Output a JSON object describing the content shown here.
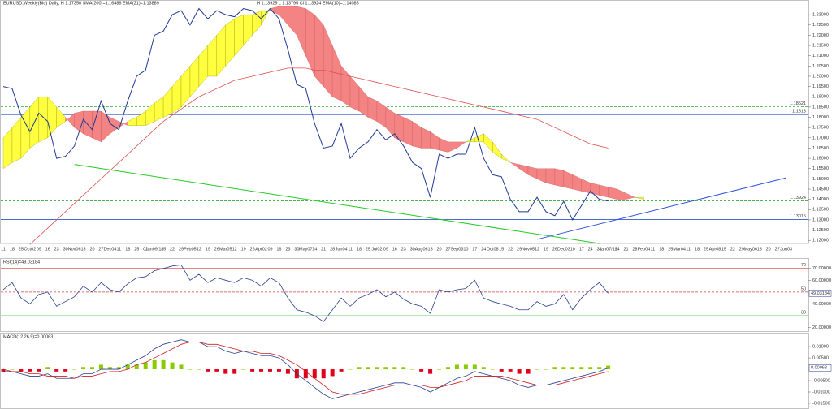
{
  "chart_data": [
    {
      "type": "line",
      "title": "EURUSD,Weekly(Bid) Daily, H 1.17350 SMA(200)=1.16486 EMA(21)=1.13889",
      "subtitle": "H 1.13929 L 1.13795 Cl 1.13924 EMA(10)=1.14088",
      "categories": [
        "11",
        "18",
        "25",
        "Oct02",
        "09",
        "16",
        "23",
        "30",
        "Nov06",
        "13",
        "20",
        "27",
        "Dec04",
        "11",
        "18",
        "25",
        "01",
        "Jan09/18",
        "15",
        "22",
        "29",
        "Feb05",
        "12",
        "19",
        "26",
        "Mar05",
        "12",
        "19",
        "26",
        "Apr02",
        "09",
        "16",
        "23",
        "30",
        "May07",
        "14",
        "21",
        "28",
        "Jun04",
        "11",
        "18",
        "25",
        "Jul02",
        "09",
        "16",
        "23",
        "30",
        "Aug06",
        "13",
        "20",
        "27",
        "Sep03",
        "10",
        "17",
        "24",
        "Oct08",
        "15",
        "22",
        "29",
        "Nov05",
        "12",
        "19",
        "26",
        "Dec03",
        "10",
        "17",
        "24",
        "31",
        "Jan07/19",
        "14",
        "21",
        "28",
        "Feb04",
        "11",
        "18",
        "25",
        "Mar04",
        "11",
        "18",
        "25",
        "Apr08",
        "15",
        "22",
        "29",
        "May06",
        "13",
        "20",
        "27",
        "Jun03"
      ],
      "series": [
        {
          "color": "#1f3a93",
          "values": [
            1.195,
            1.194,
            1.181,
            1.173,
            1.182,
            1.178,
            1.16,
            1.161,
            1.166,
            1.179,
            1.174,
            1.188,
            1.177,
            1.174,
            1.188,
            1.2,
            1.203,
            1.22,
            1.222,
            1.23,
            1.232,
            1.225,
            1.233,
            1.228,
            1.232,
            1.23,
            1.229,
            1.233,
            1.232,
            1.228,
            1.233,
            1.228,
            1.213,
            1.196,
            1.194,
            1.177,
            1.165,
            1.166,
            1.177,
            1.16,
            1.165,
            1.168,
            1.174,
            1.169,
            1.172,
            1.166,
            1.158,
            1.155,
            1.141,
            1.162,
            1.16,
            1.162,
            1.162,
            1.175,
            1.16,
            1.152,
            1.151,
            1.14,
            1.134,
            1.134,
            1.141,
            1.134,
            1.132,
            1.139,
            1.13,
            1.137,
            1.144,
            1.14,
            1.1392,
            null,
            null,
            null,
            null,
            null,
            null,
            null,
            null,
            null,
            null,
            null,
            null,
            null,
            null,
            null,
            null,
            null,
            null,
            null,
            null
          ]
        },
        {
          "color": "#e05050",
          "values": [
            null,
            null,
            null,
            1.118,
            1.122,
            1.126,
            1.13,
            1.134,
            1.138,
            1.142,
            1.146,
            1.15,
            1.154,
            1.158,
            1.162,
            1.166,
            1.17,
            1.174,
            1.178,
            1.181,
            1.184,
            1.187,
            1.19,
            1.192,
            1.194,
            1.196,
            1.198,
            1.199,
            1.2,
            1.201,
            1.202,
            1.203,
            1.204,
            1.204,
            1.204,
            1.203,
            1.203,
            1.202,
            1.201,
            1.2,
            1.199,
            1.198,
            1.197,
            1.196,
            1.195,
            1.194,
            1.193,
            1.192,
            1.191,
            1.19,
            1.189,
            1.188,
            1.187,
            1.186,
            1.185,
            1.184,
            1.183,
            1.182,
            1.181,
            1.18,
            1.179,
            1.177,
            1.175,
            1.173,
            1.171,
            1.169,
            1.167,
            1.166,
            1.165,
            null,
            null,
            null,
            null,
            null,
            null,
            null,
            null,
            null,
            null,
            null,
            null,
            null,
            null,
            null,
            null,
            null,
            null,
            null,
            null
          ]
        }
      ],
      "cloud": {
        "bull_color": "#ffff40",
        "bear_color": "#f48484",
        "span_a": [
          1.17,
          1.175,
          1.18,
          1.185,
          1.19,
          1.19,
          1.185,
          1.18,
          1.175,
          1.172,
          1.17,
          1.168,
          1.172,
          1.175,
          1.178,
          1.18,
          1.183,
          1.187,
          1.19,
          1.195,
          1.2,
          1.205,
          1.21,
          1.215,
          1.22,
          1.225,
          1.228,
          1.23,
          1.23,
          1.232,
          1.232,
          1.23,
          1.225,
          1.22,
          1.21,
          1.2,
          1.195,
          1.19,
          1.188,
          1.185,
          1.183,
          1.18,
          1.178,
          1.175,
          1.17,
          1.168,
          1.166,
          1.165,
          1.165,
          1.164,
          1.163,
          1.165,
          1.168,
          1.17,
          1.172,
          1.168,
          1.162,
          1.158,
          1.155,
          1.152,
          1.15,
          1.148,
          1.147,
          1.146,
          1.145,
          1.144,
          1.143,
          1.142,
          1.141,
          1.14,
          1.14,
          1.141,
          1.141,
          null,
          null,
          null,
          null,
          null,
          null,
          null,
          null,
          null,
          null,
          null,
          null,
          null,
          null,
          null,
          null
        ],
        "span_b": [
          1.155,
          1.158,
          1.16,
          1.165,
          1.168,
          1.17,
          1.175,
          1.178,
          1.182,
          1.183,
          1.183,
          1.183,
          1.18,
          1.178,
          1.176,
          1.176,
          1.176,
          1.178,
          1.18,
          1.182,
          1.185,
          1.19,
          1.195,
          1.2,
          1.2,
          1.205,
          1.21,
          1.215,
          1.22,
          1.225,
          1.233,
          1.234,
          1.234,
          1.234,
          1.233,
          1.23,
          1.225,
          1.215,
          1.205,
          1.2,
          1.195,
          1.19,
          1.188,
          1.185,
          1.182,
          1.18,
          1.178,
          1.175,
          1.173,
          1.17,
          1.168,
          1.168,
          1.168,
          1.168,
          1.168,
          1.163,
          1.16,
          1.158,
          1.157,
          1.156,
          1.155,
          1.155,
          1.155,
          1.154,
          1.152,
          1.15,
          1.148,
          1.147,
          1.146,
          1.145,
          1.143,
          1.141,
          1.14,
          null,
          null,
          null,
          null,
          null,
          null,
          null,
          null,
          null,
          null,
          null,
          null,
          null,
          null,
          null,
          null
        ]
      },
      "levels": [
        {
          "value": 1.18521,
          "color": "#33aa33",
          "dashed": true
        },
        {
          "value": 1.1813,
          "color": "#3355cc",
          "dashed": false
        },
        {
          "value": 1.13924,
          "color": "#33aa33",
          "dashed": true
        },
        {
          "value": 1.13015,
          "color": "#3355cc",
          "dashed": false
        }
      ],
      "trendlines": [
        {
          "color": "#22cc22",
          "from": [
            8,
            1.157
          ],
          "to": [
            67,
            1.1185
          ]
        },
        {
          "color": "#3355dd",
          "from": [
            60,
            1.1205
          ],
          "to": [
            88,
            1.1505
          ]
        }
      ],
      "ylim": [
        1.1185,
        1.2352
      ],
      "yticks": [
        {
          "value": 1.23,
          "label": "1.23000"
        },
        {
          "value": 1.225,
          "label": "1.22500"
        },
        {
          "value": 1.22,
          "label": "1.22000"
        },
        {
          "value": 1.215,
          "label": "1.21500"
        },
        {
          "value": 1.21,
          "label": "1.21000"
        },
        {
          "value": 1.205,
          "label": "1.20500"
        },
        {
          "value": 1.2,
          "label": "1.20000"
        },
        {
          "value": 1.195,
          "label": "1.19500"
        },
        {
          "value": 1.19,
          "label": "1.19000"
        },
        {
          "value": 1.185,
          "label": "1.18500"
        },
        {
          "value": 1.18,
          "label": "1.18000"
        },
        {
          "value": 1.175,
          "label": "1.17500"
        },
        {
          "value": 1.17,
          "label": "1.17000"
        },
        {
          "value": 1.165,
          "label": "1.16500"
        },
        {
          "value": 1.16,
          "label": "1.16000"
        },
        {
          "value": 1.155,
          "label": "1.15500"
        },
        {
          "value": 1.15,
          "label": "1.15000"
        },
        {
          "value": 1.145,
          "label": "1.14500"
        },
        {
          "value": 1.14,
          "label": "1.14000"
        },
        {
          "value": 1.135,
          "label": "1.13500"
        },
        {
          "value": 1.13,
          "label": "1.13000"
        },
        {
          "value": 1.125,
          "label": "1.12500"
        },
        {
          "value": 1.12,
          "label": "1.12000"
        }
      ]
    },
    {
      "type": "line",
      "title": "RSI(14)=49.03184",
      "series": [
        {
          "color": "#2a3f8f",
          "values": [
            52,
            58,
            45,
            40,
            48,
            50,
            38,
            42,
            46,
            55,
            50,
            58,
            52,
            50,
            57,
            62,
            63,
            68,
            70,
            72,
            73,
            60,
            65,
            58,
            62,
            60,
            58,
            62,
            60,
            55,
            62,
            58,
            45,
            35,
            33,
            30,
            25,
            35,
            45,
            38,
            45,
            48,
            52,
            46,
            50,
            44,
            40,
            38,
            32,
            52,
            50,
            52,
            53,
            60,
            45,
            42,
            40,
            38,
            35,
            35,
            42,
            38,
            40,
            48,
            35,
            45,
            52,
            58,
            49.03184,
            null,
            null,
            null,
            null,
            null,
            null,
            null,
            null,
            null,
            null,
            null,
            null,
            null,
            null,
            null,
            null,
            null,
            null,
            null,
            null
          ]
        }
      ],
      "levels": [
        {
          "value": 70,
          "color": "#d04040",
          "dashed": false
        },
        {
          "value": 50,
          "color": "#d04040",
          "dashed": true
        },
        {
          "value": 30,
          "color": "#40b040",
          "dashed": false
        }
      ],
      "ylim": [
        17,
        76
      ],
      "yticks": [
        {
          "value": 70,
          "label": "70.00000"
        },
        {
          "value": 60,
          "label": "60.00000"
        },
        {
          "value": 40,
          "label": "40.00000"
        },
        {
          "value": 20,
          "label": "20.00000"
        }
      ]
    },
    {
      "type": "macd",
      "title": "MACD(12,26,9)=0.00063",
      "histogram": {
        "up_color": "#88cc00",
        "down_color": "#e0001a",
        "values": [
          -0.001,
          0,
          -0.001,
          -0.001,
          -0.001,
          0.001,
          -0.001,
          -0.001,
          0,
          0.001,
          0.001,
          0.002,
          0.001,
          0.001,
          0.002,
          0.002,
          0.003,
          0.004,
          0.004,
          0.003,
          0.002,
          0,
          0,
          -0.001,
          -0.001,
          -0.002,
          -0.002,
          0,
          -0.001,
          -0.001,
          -0.001,
          -0.001,
          -0.002,
          -0.004,
          -0.004,
          -0.004,
          -0.004,
          -0.003,
          -0.001,
          0,
          0.001,
          0.001,
          0.001,
          0.001,
          0.001,
          0.001,
          0,
          -0.001,
          -0.002,
          0,
          0.001,
          0.002,
          0.002,
          0.002,
          0.001,
          0,
          -0.001,
          -0.001,
          -0.002,
          -0.002,
          0,
          0,
          0.001,
          0.001,
          0.001,
          0.001,
          0.001,
          0.001,
          0.0016,
          null,
          null,
          null,
          null,
          null,
          null,
          null,
          null,
          null,
          null,
          null,
          null,
          null,
          null,
          null,
          null,
          null,
          null,
          null,
          null
        ]
      },
      "series": [
        {
          "color": "#2a3f8f",
          "values": [
            -0.001,
            -0.001,
            -0.002,
            -0.003,
            -0.003,
            -0.002,
            -0.004,
            -0.004,
            -0.004,
            -0.002,
            -0.002,
            0.0,
            0.0,
            0.0,
            0.002,
            0.004,
            0.006,
            0.009,
            0.011,
            0.012,
            0.013,
            0.012,
            0.012,
            0.01,
            0.01,
            0.008,
            0.007,
            0.008,
            0.007,
            0.006,
            0.006,
            0.005,
            0.002,
            -0.002,
            -0.005,
            -0.008,
            -0.011,
            -0.013,
            -0.012,
            -0.011,
            -0.01,
            -0.009,
            -0.008,
            -0.007,
            -0.006,
            -0.006,
            -0.007,
            -0.008,
            -0.01,
            -0.008,
            -0.006,
            -0.004,
            -0.003,
            -0.001,
            -0.002,
            -0.003,
            -0.004,
            -0.005,
            -0.007,
            -0.008,
            -0.007,
            -0.007,
            -0.006,
            -0.005,
            -0.004,
            -0.003,
            -0.002,
            -0.001,
            0.00063,
            null,
            null,
            null,
            null,
            null,
            null,
            null,
            null,
            null,
            null,
            null,
            null,
            null,
            null,
            null,
            null,
            null,
            null,
            null,
            null
          ]
        },
        {
          "color": "#d02020",
          "values": [
            0.0,
            -0.001,
            -0.001,
            -0.002,
            -0.002,
            -0.003,
            -0.003,
            -0.003,
            -0.004,
            -0.003,
            -0.003,
            -0.002,
            -0.001,
            -0.001,
            0.0,
            0.002,
            0.003,
            0.005,
            0.007,
            0.009,
            0.011,
            0.012,
            0.012,
            0.011,
            0.011,
            0.01,
            0.009,
            0.008,
            0.008,
            0.007,
            0.007,
            0.006,
            0.004,
            0.002,
            -0.001,
            -0.004,
            -0.007,
            -0.01,
            -0.011,
            -0.011,
            -0.011,
            -0.01,
            -0.009,
            -0.008,
            -0.007,
            -0.007,
            -0.007,
            -0.007,
            -0.008,
            -0.008,
            -0.007,
            -0.006,
            -0.005,
            -0.003,
            -0.003,
            -0.003,
            -0.003,
            -0.004,
            -0.005,
            -0.006,
            -0.007,
            -0.007,
            -0.007,
            -0.006,
            -0.005,
            -0.004,
            -0.003,
            -0.002,
            -0.001,
            null,
            null,
            null,
            null,
            null,
            null,
            null,
            null,
            null,
            null,
            null,
            null,
            null,
            null,
            null,
            null,
            null,
            null,
            null,
            null
          ]
        }
      ],
      "ylim": [
        -0.0168,
        0.0154
      ],
      "yticks": [
        {
          "value": 0.01,
          "label": "0.01000"
        },
        {
          "value": 0.005,
          "label": "0.00500"
        },
        {
          "value": -0.005,
          "label": "-0.00500"
        },
        {
          "value": -0.01,
          "label": "-0.01000"
        },
        {
          "value": -0.015,
          "label": "-0.01500"
        }
      ]
    }
  ]
}
